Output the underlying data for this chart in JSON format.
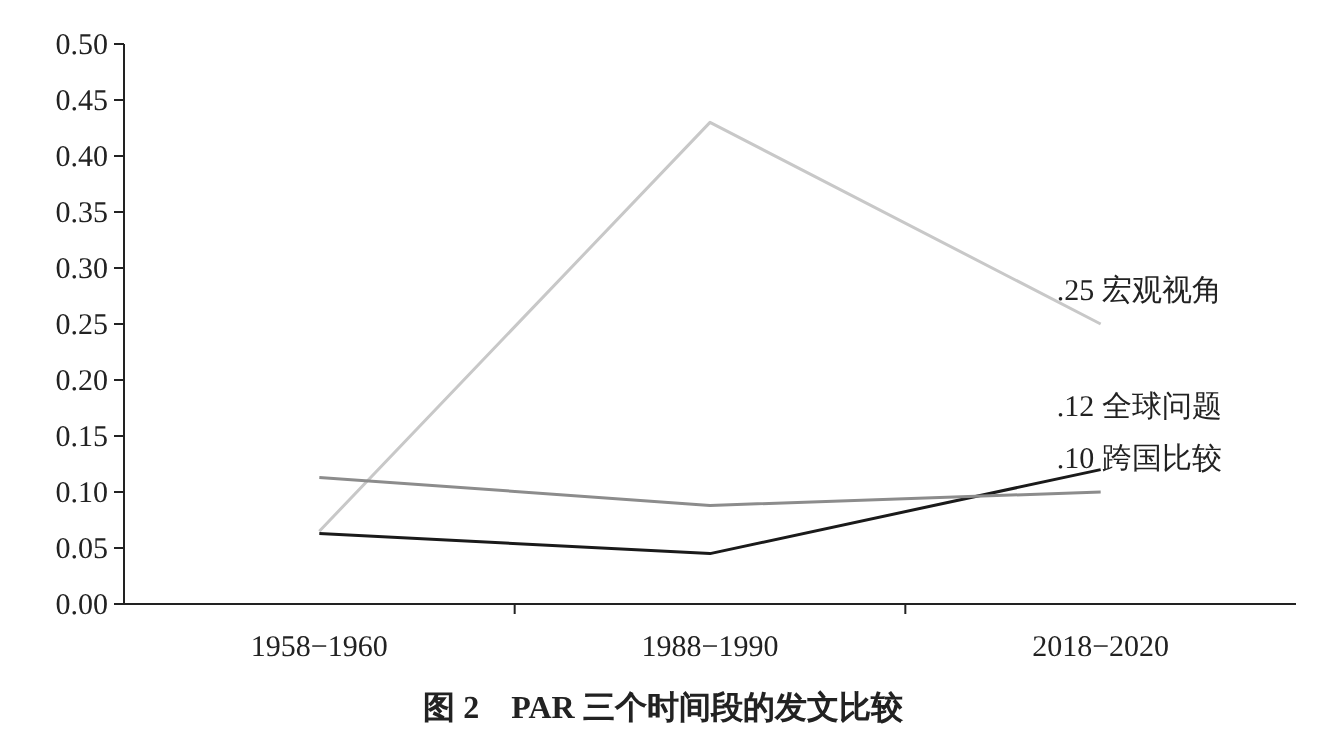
{
  "chart_data": {
    "type": "line",
    "title": "图 2　PAR 三个时间段的发文比较",
    "categories": [
      "1958−1960",
      "1988−1990",
      "2018−2020"
    ],
    "series": [
      {
        "name": "宏观视角",
        "color": "#c8c8c8",
        "values": [
          0.065,
          0.43,
          0.25
        ],
        "value_labels": [
          null,
          null,
          ".25"
        ]
      },
      {
        "name": "全球问题",
        "color": "#1a1a1a",
        "values": [
          0.063,
          0.045,
          0.12
        ],
        "value_labels": [
          null,
          null,
          ".12"
        ]
      },
      {
        "name": "跨国比较",
        "color": "#8c8c8c",
        "values": [
          0.113,
          0.088,
          0.1
        ],
        "value_labels": [
          null,
          null,
          ".10"
        ]
      }
    ],
    "ylim": [
      0,
      0.5
    ],
    "yticks": [
      {
        "value": 0,
        "label": "0.00"
      },
      {
        "value": 0.05,
        "label": "0.05"
      },
      {
        "value": 0.1,
        "label": "0.10"
      },
      {
        "value": 0.15,
        "label": "0.15"
      },
      {
        "value": 0.2,
        "label": "0.20"
      },
      {
        "value": 0.25,
        "label": "0.25"
      },
      {
        "value": 0.3,
        "label": "0.30"
      },
      {
        "value": 0.35,
        "label": "0.35"
      },
      {
        "value": 0.4,
        "label": "0.40"
      },
      {
        "value": 0.45,
        "label": "0.45"
      },
      {
        "value": 0.5,
        "label": "0.50"
      }
    ],
    "grid": false,
    "marker": "none",
    "line_style": "solid"
  }
}
